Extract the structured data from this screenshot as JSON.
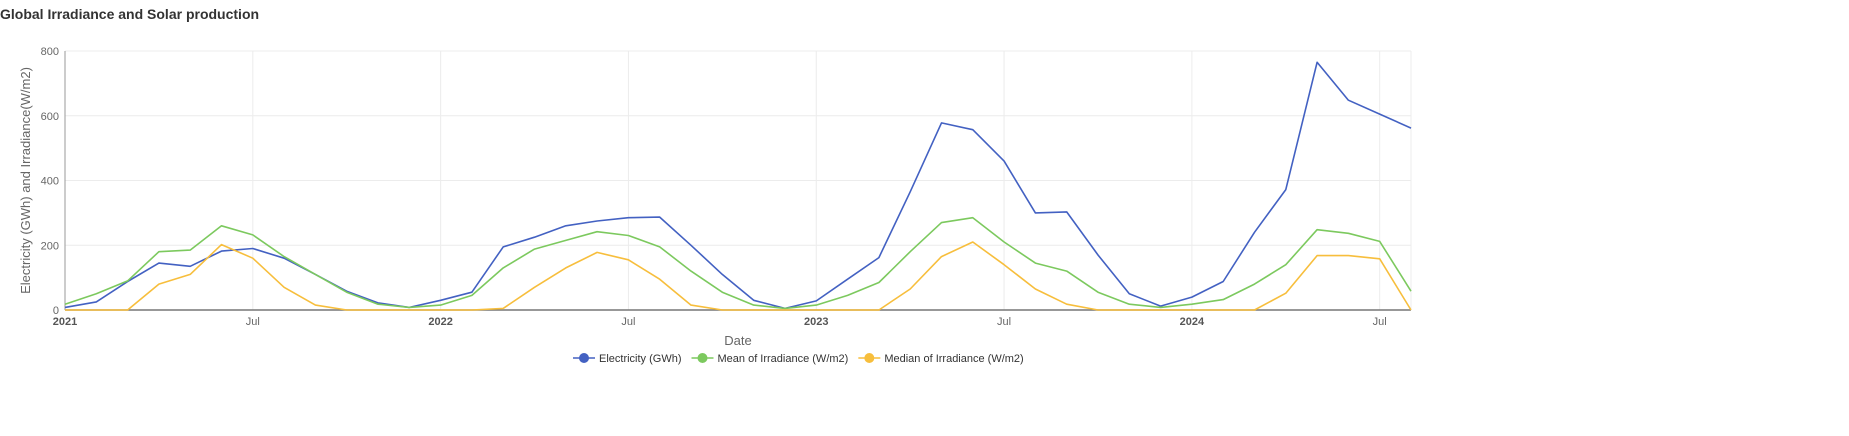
{
  "chart_data": {
    "type": "line",
    "title": "Global Irradiance and Solar production",
    "xlabel": "Date",
    "ylabel": "Electricity (GWh) and Irradiance(W/m2)",
    "ylim": [
      0,
      800
    ],
    "yticks": [
      0,
      200,
      400,
      600,
      800
    ],
    "grid": true,
    "legend_position": "bottom-center",
    "x": [
      "2021-01",
      "2021-02",
      "2021-03",
      "2021-04",
      "2021-05",
      "2021-06",
      "2021-07",
      "2021-08",
      "2021-09",
      "2021-10",
      "2021-11",
      "2021-12",
      "2022-01",
      "2022-02",
      "2022-03",
      "2022-04",
      "2022-05",
      "2022-06",
      "2022-07",
      "2022-08",
      "2022-09",
      "2022-10",
      "2022-11",
      "2022-12",
      "2023-01",
      "2023-02",
      "2023-03",
      "2023-04",
      "2023-05",
      "2023-06",
      "2023-07",
      "2023-08",
      "2023-09",
      "2023-10",
      "2023-11",
      "2023-12",
      "2024-01",
      "2024-02",
      "2024-03",
      "2024-04",
      "2024-05",
      "2024-06",
      "2024-07",
      "2024-08"
    ],
    "xticks": [
      {
        "value": "2021-01",
        "label": "2021",
        "major": true
      },
      {
        "value": "2021-07",
        "label": "Jul",
        "major": false
      },
      {
        "value": "2022-01",
        "label": "2022",
        "major": true
      },
      {
        "value": "2022-07",
        "label": "Jul",
        "major": false
      },
      {
        "value": "2023-01",
        "label": "2023",
        "major": true
      },
      {
        "value": "2023-07",
        "label": "Jul",
        "major": false
      },
      {
        "value": "2024-01",
        "label": "2024",
        "major": true
      },
      {
        "value": "2024-07",
        "label": "Jul",
        "major": false
      }
    ],
    "series": [
      {
        "name": "Electricity (GWh)",
        "color": "#4361c2",
        "values": [
          8,
          25,
          88,
          145,
          135,
          182,
          190,
          160,
          110,
          58,
          22,
          8,
          30,
          55,
          195,
          225,
          260,
          275,
          285,
          287,
          200,
          110,
          30,
          5,
          28,
          95,
          162,
          365,
          578,
          557,
          460,
          300,
          303,
          170,
          50,
          12,
          40,
          88,
          240,
          372,
          765,
          648,
          605,
          562
        ]
      },
      {
        "name": "Mean of Irradiance (W/m2)",
        "color": "#7cc95e",
        "values": [
          18,
          50,
          90,
          180,
          185,
          260,
          232,
          165,
          110,
          55,
          18,
          8,
          15,
          45,
          130,
          188,
          215,
          242,
          230,
          195,
          120,
          55,
          15,
          5,
          15,
          45,
          85,
          180,
          270,
          285,
          210,
          145,
          120,
          55,
          18,
          8,
          18,
          32,
          80,
          140,
          248,
          237,
          212,
          58
        ]
      },
      {
        "name": "Median of Irradiance (W/m2)",
        "color": "#f7be3c",
        "values": [
          0,
          0,
          0,
          80,
          110,
          202,
          160,
          70,
          15,
          0,
          0,
          0,
          0,
          0,
          5,
          70,
          130,
          178,
          155,
          95,
          15,
          0,
          0,
          0,
          0,
          0,
          0,
          65,
          165,
          210,
          140,
          65,
          18,
          0,
          0,
          0,
          0,
          0,
          0,
          52,
          168,
          168,
          158,
          0
        ]
      }
    ]
  }
}
